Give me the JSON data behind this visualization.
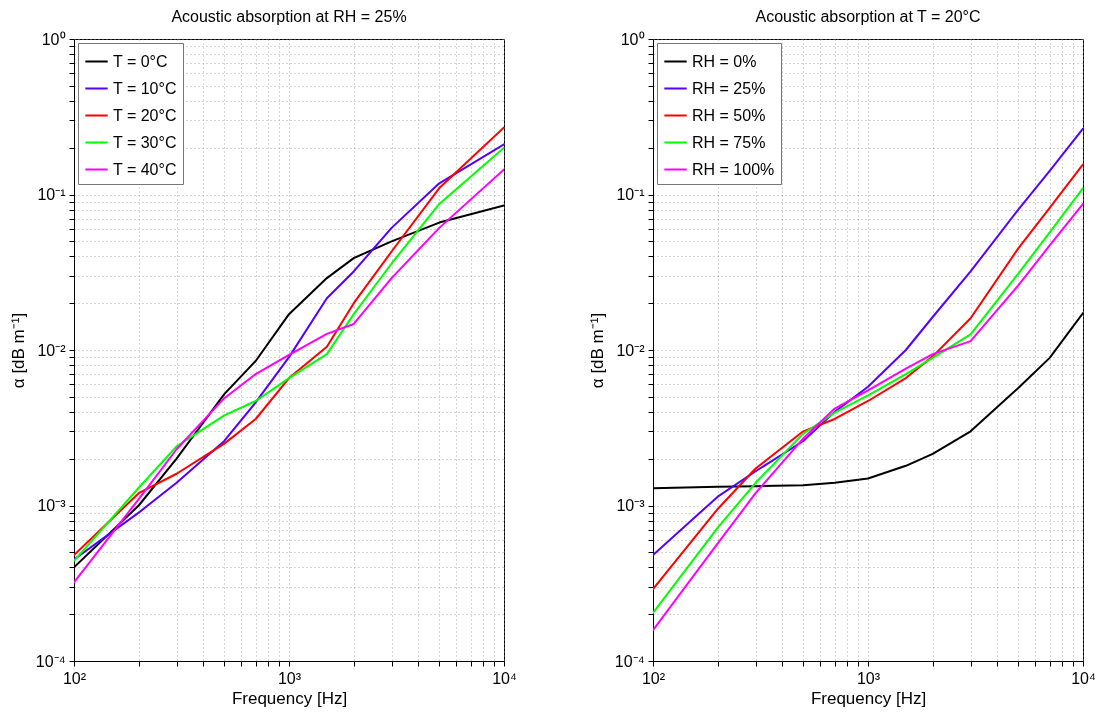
{
  "chart_data": [
    {
      "type": "line",
      "title": "Acoustic absorption at RH = 25%",
      "xlabel": "Frequency [Hz]",
      "ylabel": "α [dB m⁻¹]",
      "log": "xy",
      "grid": true,
      "legend": "top left",
      "xlim": [
        100,
        10000
      ],
      "ylim": [
        0.0001,
        1
      ],
      "xticks": [
        {
          "value": 100,
          "label": "10²"
        },
        {
          "value": 200,
          "label": null
        },
        {
          "value": 300,
          "label": null
        },
        {
          "value": 400,
          "label": null
        },
        {
          "value": 500,
          "label": null
        },
        {
          "value": 600,
          "label": null
        },
        {
          "value": 700,
          "label": null
        },
        {
          "value": 800,
          "label": null
        },
        {
          "value": 900,
          "label": null
        },
        {
          "value": 1000,
          "label": "10³"
        },
        {
          "value": 2000,
          "label": null
        },
        {
          "value": 3000,
          "label": null
        },
        {
          "value": 4000,
          "label": null
        },
        {
          "value": 5000,
          "label": null
        },
        {
          "value": 6000,
          "label": null
        },
        {
          "value": 7000,
          "label": null
        },
        {
          "value": 8000,
          "label": null
        },
        {
          "value": 9000,
          "label": null
        },
        {
          "value": 10000,
          "label": "10⁴"
        }
      ],
      "yticks": [
        {
          "value": 0.0001,
          "label": "10⁻⁴"
        },
        {
          "value": 0.0002,
          "label": null
        },
        {
          "value": 0.0003,
          "label": null
        },
        {
          "value": 0.0004,
          "label": null
        },
        {
          "value": 0.0005,
          "label": null
        },
        {
          "value": 0.0006,
          "label": null
        },
        {
          "value": 0.0007,
          "label": null
        },
        {
          "value": 0.0008,
          "label": null
        },
        {
          "value": 0.0009,
          "label": null
        },
        {
          "value": 0.001,
          "label": "10⁻³"
        },
        {
          "value": 0.002,
          "label": null
        },
        {
          "value": 0.003,
          "label": null
        },
        {
          "value": 0.004,
          "label": null
        },
        {
          "value": 0.005,
          "label": null
        },
        {
          "value": 0.006,
          "label": null
        },
        {
          "value": 0.007,
          "label": null
        },
        {
          "value": 0.008,
          "label": null
        },
        {
          "value": 0.009,
          "label": null
        },
        {
          "value": 0.01,
          "label": "10⁻²"
        },
        {
          "value": 0.02,
          "label": null
        },
        {
          "value": 0.03,
          "label": null
        },
        {
          "value": 0.04,
          "label": null
        },
        {
          "value": 0.05,
          "label": null
        },
        {
          "value": 0.06,
          "label": null
        },
        {
          "value": 0.07,
          "label": null
        },
        {
          "value": 0.08,
          "label": null
        },
        {
          "value": 0.09,
          "label": null
        },
        {
          "value": 0.1,
          "label": "10⁻¹"
        },
        {
          "value": 0.2,
          "label": null
        },
        {
          "value": 0.3,
          "label": null
        },
        {
          "value": 0.4,
          "label": null
        },
        {
          "value": 0.5,
          "label": null
        },
        {
          "value": 0.6,
          "label": null
        },
        {
          "value": 0.7,
          "label": null
        },
        {
          "value": 0.8,
          "label": null
        },
        {
          "value": 0.9,
          "label": null
        },
        {
          "value": 1,
          "label": "10⁰"
        }
      ],
      "x": [
        100,
        200,
        300,
        500,
        700,
        1000,
        1500,
        2000,
        3000,
        5000,
        10000
      ],
      "series": [
        {
          "name": "T = 0°C",
          "color": "#000000",
          "values": [
            0.0004,
            0.001,
            0.002,
            0.0052,
            0.0085,
            0.017,
            0.029,
            0.039,
            0.05,
            0.066,
            0.085
          ]
        },
        {
          "name": "T = 10°C",
          "color": "#5500ff",
          "values": [
            0.00045,
            0.0009,
            0.0014,
            0.0026,
            0.0046,
            0.009,
            0.0215,
            0.032,
            0.061,
            0.118,
            0.21
          ]
        },
        {
          "name": "T = 20°C",
          "color": "#ff0000",
          "values": [
            0.00048,
            0.0012,
            0.0016,
            0.0025,
            0.0036,
            0.0066,
            0.0105,
            0.02,
            0.043,
            0.11,
            0.27
          ]
        },
        {
          "name": "T = 30°C",
          "color": "#00ff00",
          "values": [
            0.00044,
            0.0013,
            0.0024,
            0.0038,
            0.0047,
            0.0066,
            0.0094,
            0.017,
            0.036,
            0.087,
            0.2
          ]
        },
        {
          "name": "T = 40°C",
          "color": "#ff00ff",
          "values": [
            0.00032,
            0.0011,
            0.0023,
            0.0049,
            0.007,
            0.0093,
            0.0127,
            0.0147,
            0.029,
            0.061,
            0.145
          ]
        }
      ]
    },
    {
      "type": "line",
      "title": "Acoustic absorption at T = 20°C",
      "xlabel": "Frequency [Hz]",
      "ylabel": "α [dB m⁻¹]",
      "log": "xy",
      "grid": true,
      "legend": "top left",
      "xlim": [
        100,
        10000
      ],
      "ylim": [
        0.0001,
        1
      ],
      "xticks": [
        {
          "value": 100,
          "label": "10²"
        },
        {
          "value": 200,
          "label": null
        },
        {
          "value": 300,
          "label": null
        },
        {
          "value": 400,
          "label": null
        },
        {
          "value": 500,
          "label": null
        },
        {
          "value": 600,
          "label": null
        },
        {
          "value": 700,
          "label": null
        },
        {
          "value": 800,
          "label": null
        },
        {
          "value": 900,
          "label": null
        },
        {
          "value": 1000,
          "label": "10³"
        },
        {
          "value": 2000,
          "label": null
        },
        {
          "value": 3000,
          "label": null
        },
        {
          "value": 4000,
          "label": null
        },
        {
          "value": 5000,
          "label": null
        },
        {
          "value": 6000,
          "label": null
        },
        {
          "value": 7000,
          "label": null
        },
        {
          "value": 8000,
          "label": null
        },
        {
          "value": 9000,
          "label": null
        },
        {
          "value": 10000,
          "label": "10⁴"
        }
      ],
      "yticks": [
        {
          "value": 0.0001,
          "label": "10⁻⁴"
        },
        {
          "value": 0.0002,
          "label": null
        },
        {
          "value": 0.0003,
          "label": null
        },
        {
          "value": 0.0004,
          "label": null
        },
        {
          "value": 0.0005,
          "label": null
        },
        {
          "value": 0.0006,
          "label": null
        },
        {
          "value": 0.0007,
          "label": null
        },
        {
          "value": 0.0008,
          "label": null
        },
        {
          "value": 0.0009,
          "label": null
        },
        {
          "value": 0.001,
          "label": "10⁻³"
        },
        {
          "value": 0.002,
          "label": null
        },
        {
          "value": 0.003,
          "label": null
        },
        {
          "value": 0.004,
          "label": null
        },
        {
          "value": 0.005,
          "label": null
        },
        {
          "value": 0.006,
          "label": null
        },
        {
          "value": 0.007,
          "label": null
        },
        {
          "value": 0.008,
          "label": null
        },
        {
          "value": 0.009,
          "label": null
        },
        {
          "value": 0.01,
          "label": "10⁻²"
        },
        {
          "value": 0.02,
          "label": null
        },
        {
          "value": 0.03,
          "label": null
        },
        {
          "value": 0.04,
          "label": null
        },
        {
          "value": 0.05,
          "label": null
        },
        {
          "value": 0.06,
          "label": null
        },
        {
          "value": 0.07,
          "label": null
        },
        {
          "value": 0.08,
          "label": null
        },
        {
          "value": 0.09,
          "label": null
        },
        {
          "value": 0.1,
          "label": "10⁻¹"
        },
        {
          "value": 0.2,
          "label": null
        },
        {
          "value": 0.3,
          "label": null
        },
        {
          "value": 0.4,
          "label": null
        },
        {
          "value": 0.5,
          "label": null
        },
        {
          "value": 0.6,
          "label": null
        },
        {
          "value": 0.7,
          "label": null
        },
        {
          "value": 0.8,
          "label": null
        },
        {
          "value": 0.9,
          "label": null
        },
        {
          "value": 1,
          "label": "10⁰"
        }
      ],
      "x": [
        100,
        200,
        300,
        500,
        700,
        1000,
        1500,
        2000,
        3000,
        5000,
        7000,
        10000
      ],
      "series": [
        {
          "name": "RH = 0%",
          "color": "#000000",
          "values": [
            0.00129,
            0.00132,
            0.00133,
            0.00135,
            0.0014,
            0.00149,
            0.0018,
            0.00215,
            0.003,
            0.0057,
            0.0089,
            0.0173
          ]
        },
        {
          "name": "RH = 25%",
          "color": "#5500ff",
          "values": [
            0.00048,
            0.00114,
            0.00166,
            0.0026,
            0.004,
            0.0058,
            0.01,
            0.0163,
            0.032,
            0.08,
            0.142,
            0.265
          ]
        },
        {
          "name": "RH = 50%",
          "color": "#ff0000",
          "values": [
            0.00029,
            0.00095,
            0.00173,
            0.003,
            0.0036,
            0.0047,
            0.0066,
            0.0091,
            0.016,
            0.045,
            0.082,
            0.156
          ]
        },
        {
          "name": "RH = 75%",
          "color": "#00ff00",
          "values": [
            0.000204,
            0.00072,
            0.0014,
            0.0029,
            0.00395,
            0.0051,
            0.007,
            0.0089,
            0.0126,
            0.031,
            0.057,
            0.11
          ]
        },
        {
          "name": "RH = 100%",
          "color": "#ff00ff",
          "values": [
            0.000158,
            0.00057,
            0.0012,
            0.0027,
            0.0042,
            0.0055,
            0.0076,
            0.0094,
            0.0114,
            0.026,
            0.047,
            0.087
          ]
        }
      ]
    }
  ]
}
